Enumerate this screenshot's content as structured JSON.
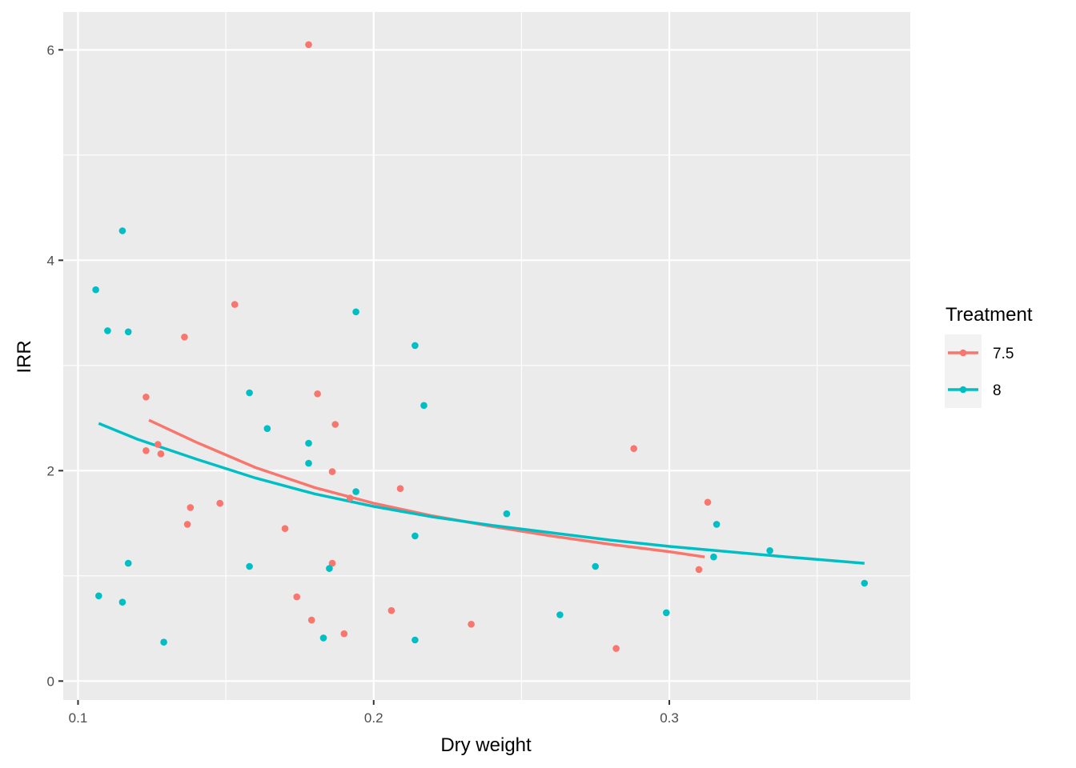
{
  "chart_data": {
    "type": "scatter",
    "xlabel": "Dry weight",
    "ylabel": "IRR",
    "xlim": [
      0.095,
      0.3815
    ],
    "ylim": [
      -0.18,
      6.36
    ],
    "x_ticks": [
      0.1,
      0.2,
      0.3
    ],
    "x_tick_labels": [
      "0.1",
      "0.2",
      "0.3"
    ],
    "y_ticks": [
      0,
      2,
      4,
      6
    ],
    "y_tick_labels": [
      "0",
      "2",
      "4",
      "6"
    ],
    "grid": true,
    "legend": {
      "title": "Treatment",
      "position": "right",
      "entries": [
        "7.5",
        "8"
      ]
    },
    "series": [
      {
        "name": "7.5",
        "color": "#F8766D",
        "points": [
          [
            0.178,
            6.05
          ],
          [
            0.153,
            3.58
          ],
          [
            0.136,
            3.27
          ],
          [
            0.123,
            2.7
          ],
          [
            0.181,
            2.73
          ],
          [
            0.187,
            2.44
          ],
          [
            0.127,
            2.25
          ],
          [
            0.123,
            2.19
          ],
          [
            0.128,
            2.16
          ],
          [
            0.186,
            1.99
          ],
          [
            0.209,
            1.83
          ],
          [
            0.192,
            1.74
          ],
          [
            0.148,
            1.69
          ],
          [
            0.138,
            1.65
          ],
          [
            0.137,
            1.49
          ],
          [
            0.17,
            1.45
          ],
          [
            0.186,
            1.12
          ],
          [
            0.174,
            0.8
          ],
          [
            0.206,
            0.67
          ],
          [
            0.179,
            0.58
          ],
          [
            0.233,
            0.54
          ],
          [
            0.19,
            0.45
          ],
          [
            0.282,
            0.31
          ],
          [
            0.288,
            2.21
          ],
          [
            0.313,
            1.7
          ],
          [
            0.31,
            1.06
          ]
        ],
        "fit": [
          [
            0.124,
            2.48
          ],
          [
            0.14,
            2.27
          ],
          [
            0.16,
            2.03
          ],
          [
            0.18,
            1.84
          ],
          [
            0.2,
            1.69
          ],
          [
            0.22,
            1.57
          ],
          [
            0.24,
            1.47
          ],
          [
            0.26,
            1.38
          ],
          [
            0.28,
            1.3
          ],
          [
            0.3,
            1.23
          ],
          [
            0.312,
            1.18
          ]
        ]
      },
      {
        "name": "8",
        "color": "#00BFC4",
        "points": [
          [
            0.115,
            4.28
          ],
          [
            0.106,
            3.72
          ],
          [
            0.11,
            3.33
          ],
          [
            0.117,
            3.32
          ],
          [
            0.194,
            3.51
          ],
          [
            0.214,
            3.19
          ],
          [
            0.217,
            2.62
          ],
          [
            0.158,
            2.74
          ],
          [
            0.164,
            2.4
          ],
          [
            0.178,
            2.26
          ],
          [
            0.178,
            2.07
          ],
          [
            0.194,
            1.8
          ],
          [
            0.245,
            1.59
          ],
          [
            0.316,
            1.49
          ],
          [
            0.214,
            1.38
          ],
          [
            0.334,
            1.24
          ],
          [
            0.315,
            1.18
          ],
          [
            0.117,
            1.12
          ],
          [
            0.158,
            1.09
          ],
          [
            0.185,
            1.07
          ],
          [
            0.275,
            1.09
          ],
          [
            0.107,
            0.81
          ],
          [
            0.115,
            0.75
          ],
          [
            0.366,
            0.93
          ],
          [
            0.299,
            0.65
          ],
          [
            0.263,
            0.63
          ],
          [
            0.183,
            0.41
          ],
          [
            0.214,
            0.39
          ],
          [
            0.129,
            0.37
          ]
        ],
        "fit": [
          [
            0.107,
            2.45
          ],
          [
            0.12,
            2.3
          ],
          [
            0.14,
            2.11
          ],
          [
            0.16,
            1.93
          ],
          [
            0.18,
            1.78
          ],
          [
            0.2,
            1.66
          ],
          [
            0.22,
            1.56
          ],
          [
            0.24,
            1.48
          ],
          [
            0.26,
            1.41
          ],
          [
            0.28,
            1.34
          ],
          [
            0.3,
            1.28
          ],
          [
            0.32,
            1.23
          ],
          [
            0.34,
            1.18
          ],
          [
            0.366,
            1.12
          ]
        ]
      }
    ]
  }
}
